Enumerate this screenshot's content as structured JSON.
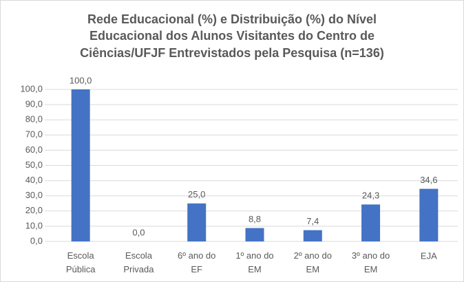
{
  "chart_data": {
    "type": "bar",
    "title": [
      "Rede Educacional (%) e Distribuição (%) do Nível",
      "Educacional dos Alunos Visitantes do Centro de",
      "Ciências/UFJF Entrevistados pela Pesquisa (n=136)"
    ],
    "categories": [
      "Escola Pública",
      "Escola Privada",
      "6º ano do EF",
      "1º ano do EM",
      "2º ano do EM",
      "3º ano do EM",
      "EJA"
    ],
    "values": [
      100.0,
      0.0,
      25.0,
      8.8,
      7.4,
      24.3,
      34.6
    ],
    "value_labels": [
      "100,0",
      "0,0",
      "25,0",
      "8,8",
      "7,4",
      "24,3",
      "34,6"
    ],
    "color": "#4472c4",
    "ylim": [
      0,
      100
    ],
    "yticks": [
      {
        "value": 0,
        "label": "0,0"
      },
      {
        "value": 10,
        "label": "10,0"
      },
      {
        "value": 20,
        "label": "20,0"
      },
      {
        "value": 30,
        "label": "30,0"
      },
      {
        "value": 40,
        "label": "40,0"
      },
      {
        "value": 50,
        "label": "50,0"
      },
      {
        "value": 60,
        "label": "60,0"
      },
      {
        "value": 70,
        "label": "70,0"
      },
      {
        "value": 80,
        "label": "80,0"
      },
      {
        "value": 90,
        "label": "90,0"
      },
      {
        "value": 100,
        "label": "100,0"
      }
    ],
    "grid": true
  }
}
